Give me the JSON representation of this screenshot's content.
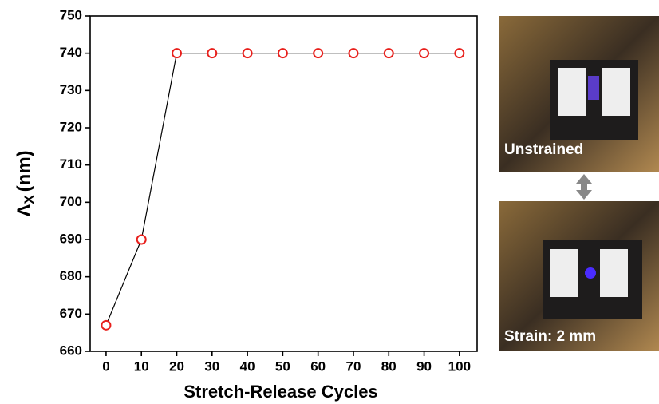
{
  "chart_data": {
    "type": "line",
    "xlabel": "Stretch-Release Cycles",
    "ylabel": {
      "symbol": "Λ",
      "subscript": "X",
      "unit": "(nm)"
    },
    "x": [
      0,
      10,
      20,
      30,
      40,
      50,
      60,
      70,
      80,
      90,
      100
    ],
    "values": [
      667,
      690,
      740,
      740,
      740,
      740,
      740,
      740,
      740,
      740,
      740
    ],
    "line_color": "#000000",
    "marker_color": "#e8201c",
    "xlim": [
      -4.5,
      105
    ],
    "xticks": [
      0,
      10,
      20,
      30,
      40,
      50,
      60,
      70,
      80,
      90,
      100
    ],
    "ylim": [
      660,
      750
    ],
    "yticks": [
      660,
      670,
      680,
      690,
      700,
      710,
      720,
      730,
      740,
      750
    ],
    "grid": false
  },
  "photos": {
    "top_label": "Unstrained",
    "bottom_label": "Strain: 2 mm"
  }
}
